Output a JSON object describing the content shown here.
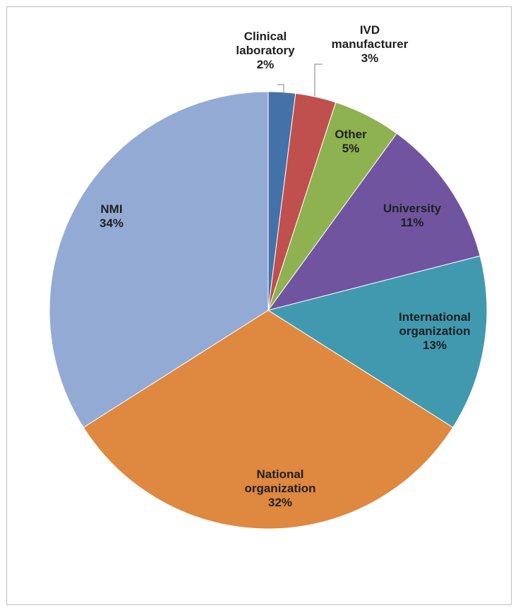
{
  "chart_data": {
    "type": "pie",
    "title": "",
    "start_angle_deg": 0,
    "direction": "clockwise",
    "slices": [
      {
        "label": "Clinical laboratory",
        "label_lines": [
          "Clinical",
          "laboratory",
          "2%"
        ],
        "value": 2,
        "color": "#4472a8",
        "label_placement": "outside"
      },
      {
        "label": "IVD manufacturer",
        "label_lines": [
          "IVD",
          "manufacturer",
          "3%"
        ],
        "value": 3,
        "color": "#c0504d",
        "label_placement": "outside"
      },
      {
        "label": "Other",
        "label_lines": [
          "Other",
          "5%"
        ],
        "value": 5,
        "color": "#8eb24f",
        "label_placement": "inside"
      },
      {
        "label": "University",
        "label_lines": [
          "University",
          "11%"
        ],
        "value": 11,
        "color": "#7154a0",
        "label_placement": "inside"
      },
      {
        "label": "International organization",
        "label_lines": [
          "International",
          "organization",
          "13%"
        ],
        "value": 13,
        "color": "#4199b0",
        "label_placement": "inside"
      },
      {
        "label": "National organization",
        "label_lines": [
          "National",
          "organization",
          "32%"
        ],
        "value": 32,
        "color": "#df8840",
        "label_placement": "inside"
      },
      {
        "label": "NMI",
        "label_lines": [
          "NMI",
          "34%"
        ],
        "value": 34,
        "color": "#93abd4",
        "label_placement": "inside"
      }
    ],
    "legend": "none"
  }
}
